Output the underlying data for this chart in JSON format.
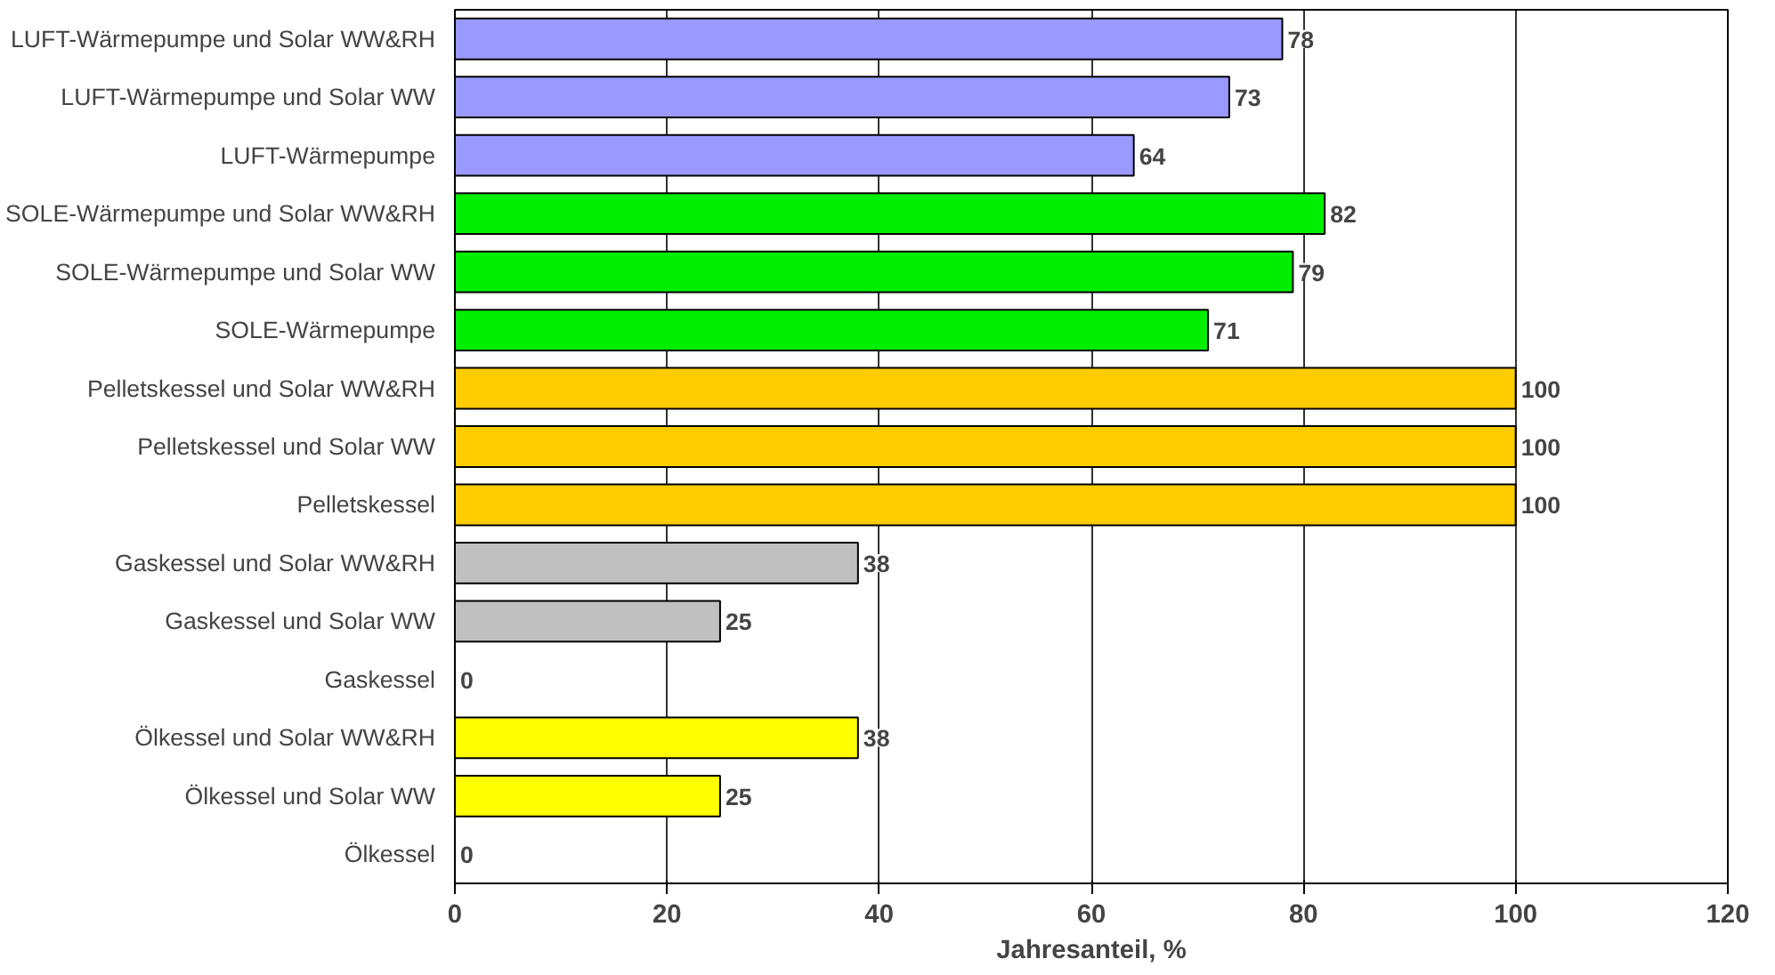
{
  "chart_data": {
    "type": "bar",
    "orientation": "horizontal",
    "xlabel": "Jahresanteil, %",
    "categories": [
      "LUFT-Wärmepumpe und Solar WW&RH",
      "LUFT-Wärmepumpe und Solar WW",
      "LUFT-Wärmepumpe",
      "SOLE-Wärmepumpe und Solar WW&RH",
      "SOLE-Wärmepumpe und Solar WW",
      "SOLE-Wärmepumpe",
      "Pelletskessel und Solar WW&RH",
      "Pelletskessel und Solar WW",
      "Pelletskessel",
      "Gaskessel und Solar WW&RH",
      "Gaskessel und Solar WW",
      "Gaskessel",
      "Ölkessel und Solar WW&RH",
      "Ölkessel und Solar WW",
      "Ölkessel"
    ],
    "values": [
      78,
      73,
      64,
      82,
      79,
      71,
      100,
      100,
      100,
      38,
      25,
      0,
      38,
      25,
      0
    ],
    "colors": [
      "#9999ff",
      "#9999ff",
      "#9999ff",
      "#00ee00",
      "#00ee00",
      "#00ee00",
      "#ffcc00",
      "#ffcc00",
      "#ffcc00",
      "#c0c0c0",
      "#c0c0c0",
      "#c0c0c0",
      "#ffff00",
      "#ffff00",
      "#ffff00"
    ],
    "xlim": [
      0,
      120
    ],
    "xticks": [
      0,
      20,
      40,
      60,
      80,
      100,
      120
    ],
    "grid": "x",
    "data_labels": true
  }
}
